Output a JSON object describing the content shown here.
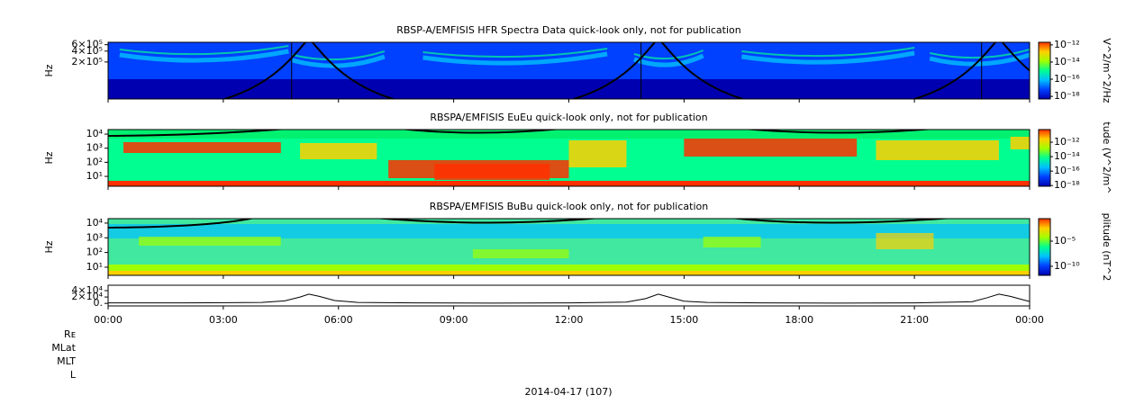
{
  "chart_data": [
    {
      "type": "spectrogram",
      "title": "RBSP-A/EMFISIS  HFR Spectra Data quick-look only, not for publication",
      "ylabel": "Hz",
      "log_y": true,
      "ylim": [
        19000,
        700000
      ],
      "yticks": [
        {
          "value": 600000,
          "label": "6×10⁵"
        },
        {
          "value": 400000,
          "label": "4×10⁵"
        },
        {
          "value": 200000,
          "label": "2×10⁵"
        }
      ],
      "colormap": [
        "#0000b0",
        "#0040ff",
        "#00c0ff",
        "#00ff90",
        "#a0ff00",
        "#ffd000",
        "#ff3000"
      ],
      "colorbar": {
        "label": "V^2/m^2/Hz",
        "log": true,
        "lim": [
          5e-19,
          2e-12
        ],
        "ticks": [
          {
            "value": 1e-12,
            "label": "10⁻¹²"
          },
          {
            "value": 1e-14,
            "label": "10⁻¹⁴"
          },
          {
            "value": 1e-16,
            "label": "10⁻¹⁶"
          },
          {
            "value": 1e-18,
            "label": "10⁻¹⁸"
          }
        ]
      }
    },
    {
      "type": "spectrogram",
      "title": "RBSPA/EMFISIS  EuEu quick-look only, not for publication",
      "ylabel": "Hz",
      "log_y": true,
      "ylim": [
        2,
        21000
      ],
      "yticks": [
        {
          "value": 10000,
          "label": "10⁴"
        },
        {
          "value": 1000,
          "label": "10³"
        },
        {
          "value": 100,
          "label": "10²"
        },
        {
          "value": 10,
          "label": "10¹"
        }
      ],
      "colormap": [
        "#0000b0",
        "#0040ff",
        "#00c0ff",
        "#00ff90",
        "#a0ff00",
        "#ffd000",
        "#ff3000"
      ],
      "colorbar": {
        "label": "tude (V^2/m^",
        "log": true,
        "lim": [
          8e-19,
          5.6e-11
        ],
        "ticks": [
          {
            "value": 1e-12,
            "label": "10⁻¹²"
          },
          {
            "value": 1e-14,
            "label": "10⁻¹⁴"
          },
          {
            "value": 1e-16,
            "label": "10⁻¹⁶"
          },
          {
            "value": 1e-18,
            "label": "10⁻¹⁸"
          }
        ]
      }
    },
    {
      "type": "spectrogram",
      "title": "RBSPA/EMFISIS  BuBu quick-look only, not for publication",
      "ylabel": "Hz",
      "log_y": true,
      "ylim": [
        2.8,
        20000
      ],
      "yticks": [
        {
          "value": 10000,
          "label": "10⁴"
        },
        {
          "value": 1000,
          "label": "10³"
        },
        {
          "value": 100,
          "label": "10²"
        },
        {
          "value": 10,
          "label": "10¹"
        }
      ],
      "colormap": [
        "#0000b0",
        "#0040ff",
        "#00c0ff",
        "#00ff90",
        "#a0ff00",
        "#ffd000",
        "#ff3000"
      ],
      "colorbar": {
        "label": "plitude (nT^2",
        "log": true,
        "lim": [
          1.6e-12,
          0.3
        ],
        "ticks": [
          {
            "value": 1e-05,
            "label": "10⁻⁵"
          },
          {
            "value": 1e-10,
            "label": "10⁻¹⁰"
          }
        ]
      }
    },
    {
      "type": "line",
      "color": "#000000",
      "ylim": [
        -8000,
        57000
      ],
      "yticks": [
        {
          "value": 40000,
          "label": "4×10⁴"
        },
        {
          "value": 20000,
          "label": "2×10⁴"
        },
        {
          "value": 0,
          "label": "0."
        }
      ],
      "xlim": [
        0,
        24
      ],
      "xticks": [
        {
          "value": 0,
          "label": "00:00"
        },
        {
          "value": 3,
          "label": "03:00"
        },
        {
          "value": 6,
          "label": "06:00"
        },
        {
          "value": 9,
          "label": "09:00"
        },
        {
          "value": 12,
          "label": "12:00"
        },
        {
          "value": 15,
          "label": "15:00"
        },
        {
          "value": 18,
          "label": "18:00"
        },
        {
          "value": 21,
          "label": "21:00"
        },
        {
          "value": 24,
          "label": "00:00"
        }
      ],
      "x": [
        0,
        2,
        4,
        4.6,
        5.0,
        5.23,
        5.5,
        5.9,
        6.5,
        8,
        10,
        12,
        13.5,
        14.0,
        14.33,
        14.6,
        15.0,
        15.6,
        17,
        19,
        21,
        22.5,
        22.9,
        23.2,
        23.5,
        23.9,
        24
      ],
      "values": [
        1500,
        1500,
        3000,
        8000,
        20000,
        29000,
        22000,
        9000,
        3000,
        1500,
        1000,
        1500,
        4000,
        15000,
        29000,
        20000,
        7000,
        3000,
        1500,
        1000,
        1500,
        5000,
        18000,
        29000,
        22000,
        9000,
        6000
      ]
    }
  ],
  "ephemeris_labels": [
    "Rᴇ",
    "MLat",
    "MLT",
    "L"
  ],
  "date_label": "2014-04-17 (107)"
}
